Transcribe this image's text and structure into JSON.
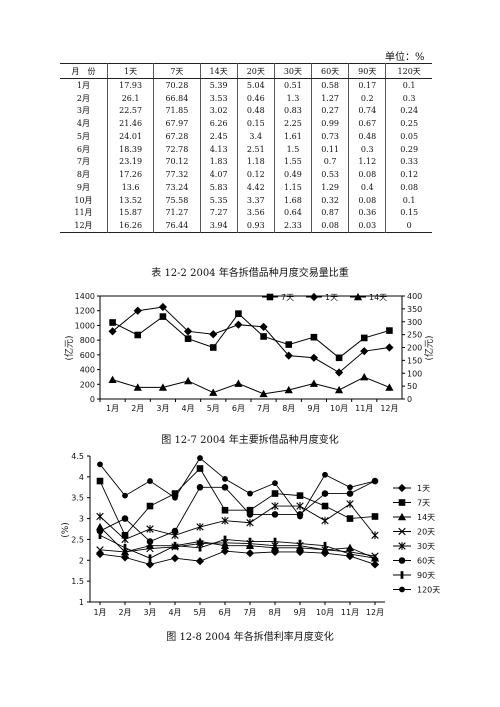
{
  "unit_label": "单位：%",
  "table": {
    "headers": [
      "月　份",
      "1天",
      "7天",
      "14天",
      "20天",
      "30天",
      "60天",
      "90天",
      "120天"
    ],
    "rows": [
      [
        "1月",
        "17.93",
        "70.28",
        "5.39",
        "5.04",
        "0.51",
        "0.58",
        "0.17",
        "0.1"
      ],
      [
        "2月",
        "26.1",
        "66.84",
        "3.53",
        "0.46",
        "1.3",
        "1.27",
        "0.2",
        "0.3"
      ],
      [
        "3月",
        "22.57",
        "71.85",
        "3.02",
        "0.48",
        "0.83",
        "0.27",
        "0.74",
        "0.24"
      ],
      [
        "4月",
        "21.46",
        "67.97",
        "6.26",
        "0.15",
        "2.25",
        "0.99",
        "0.67",
        "0.25"
      ],
      [
        "5月",
        "24.01",
        "67.28",
        "2.45",
        "3.4",
        "1.61",
        "0.73",
        "0.48",
        "0.05"
      ],
      [
        "6月",
        "18.39",
        "72.78",
        "4.13",
        "2.51",
        "1.5",
        "0.11",
        "0.3",
        "0.29"
      ],
      [
        "7月",
        "23.19",
        "70.12",
        "1.83",
        "1.18",
        "1.55",
        "0.7",
        "1.12",
        "0.33"
      ],
      [
        "8月",
        "17.26",
        "77.32",
        "4.07",
        "0.12",
        "0.49",
        "0.53",
        "0.08",
        "0.12"
      ],
      [
        "9月",
        "13.6",
        "73.24",
        "5.83",
        "4.42",
        "1.15",
        "1.29",
        "0.4",
        "0.08"
      ],
      [
        "10月",
        "13.52",
        "75.58",
        "5.35",
        "3.37",
        "1.68",
        "0.32",
        "0.08",
        "0.1"
      ],
      [
        "11月",
        "15.87",
        "71.27",
        "7.27",
        "3.56",
        "0.64",
        "0.87",
        "0.36",
        "0.15"
      ],
      [
        "12月",
        "16.26",
        "76.44",
        "3.94",
        "0.93",
        "2.33",
        "0.08",
        "0.03",
        "0"
      ]
    ]
  },
  "captions": {
    "table": "表 12-2 2004 年各拆借品种月度交易量比重",
    "fig1": "图 12-7 2004 年主要拆借品种月度变化",
    "fig2": "图 12-8 2004 年各拆借利率月度变化"
  },
  "chart_data": [
    {
      "type": "line",
      "categories": [
        "1月",
        "2月",
        "3月",
        "4月",
        "5月",
        "6月",
        "7月",
        "8月",
        "9月",
        "10月",
        "11月",
        "12月"
      ],
      "ylabel_left": "(亿元)",
      "ylabel_right": "(亿元)",
      "ylim_left": [
        0,
        1400
      ],
      "yticks_left": [
        "0",
        "200",
        "400",
        "600",
        "800",
        "1000",
        "1200",
        "1400"
      ],
      "ylim_right": [
        0,
        400
      ],
      "yticks_right": [
        "0",
        "50",
        "100",
        "150",
        "200",
        "250",
        "300",
        "350",
        "400"
      ],
      "legend_position": "top-right",
      "series": [
        {
          "name": "7天",
          "axis": "left",
          "marker": "square",
          "values": [
            1040,
            870,
            1120,
            820,
            700,
            1160,
            850,
            740,
            840,
            560,
            830,
            930
          ]
        },
        {
          "name": "1天",
          "axis": "left",
          "marker": "diamond",
          "values": [
            920,
            1200,
            1250,
            920,
            880,
            1010,
            980,
            590,
            560,
            360,
            650,
            700
          ]
        },
        {
          "name": "14天",
          "axis": "right",
          "marker": "triangle",
          "values": [
            75,
            45,
            45,
            70,
            25,
            60,
            20,
            35,
            60,
            35,
            85,
            45
          ]
        }
      ]
    },
    {
      "type": "line",
      "categories": [
        "1月",
        "2月",
        "3月",
        "4月",
        "5月",
        "6月",
        "7月",
        "8月",
        "9月",
        "10月",
        "11月",
        "12月"
      ],
      "ylabel": "(%)",
      "ylim": [
        1,
        4.5
      ],
      "yticks": [
        "1",
        "1.5",
        "2",
        "2.5",
        "3",
        "3.5",
        "4",
        "4.5"
      ],
      "legend_position": "right",
      "series": [
        {
          "name": "1天",
          "marker": "diamond",
          "values": [
            2.15,
            2.07,
            1.9,
            2.05,
            1.98,
            2.22,
            2.17,
            2.2,
            2.2,
            2.17,
            2.1,
            1.9
          ]
        },
        {
          "name": "7天",
          "marker": "square",
          "values": [
            3.9,
            2.6,
            3.3,
            3.6,
            4.2,
            3.2,
            3.2,
            3.6,
            3.55,
            3.3,
            3.0,
            3.05
          ]
        },
        {
          "name": "14天",
          "marker": "triangle",
          "values": [
            2.8,
            2.2,
            2.35,
            2.35,
            2.45,
            2.35,
            2.35,
            2.3,
            2.3,
            2.25,
            2.3,
            2.05
          ]
        },
        {
          "name": "20天",
          "marker": "x",
          "values": [
            2.25,
            2.2,
            2.28,
            2.32,
            2.4,
            2.42,
            2.4,
            2.35,
            2.35,
            2.25,
            2.2,
            2.1
          ]
        },
        {
          "name": "30天",
          "marker": "star",
          "values": [
            3.05,
            2.5,
            2.75,
            2.6,
            2.8,
            2.95,
            2.9,
            3.3,
            3.3,
            2.95,
            3.35,
            2.6
          ]
        },
        {
          "name": "60天",
          "marker": "circle",
          "values": [
            2.7,
            3.0,
            2.45,
            2.7,
            3.75,
            3.75,
            3.1,
            3.1,
            3.1,
            3.6,
            3.6,
            3.9
          ]
        },
        {
          "name": "90天",
          "marker": "bar",
          "values": [
            2.6,
            2.3,
            2.05,
            2.35,
            2.3,
            2.5,
            2.45,
            2.45,
            2.4,
            2.35,
            2.15,
            2.05
          ]
        },
        {
          "name": "120天",
          "marker": "dot",
          "values": [
            4.3,
            3.55,
            3.9,
            3.5,
            4.45,
            3.95,
            3.6,
            3.85,
            3.05,
            4.05,
            3.75,
            3.9
          ]
        }
      ]
    }
  ]
}
